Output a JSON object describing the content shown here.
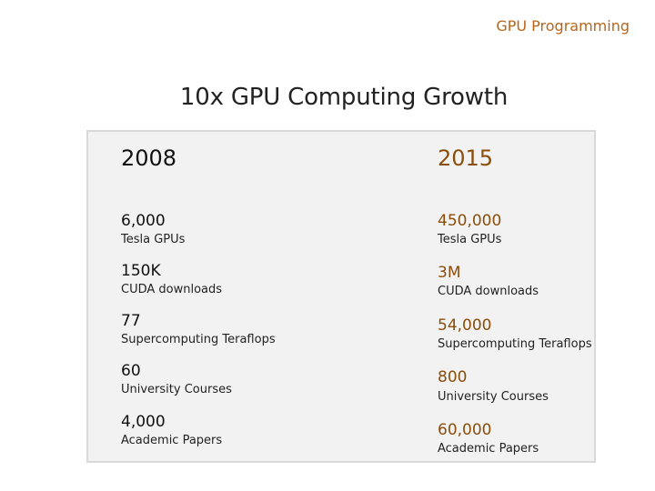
{
  "header": {
    "section": "GPU Programming"
  },
  "slide": {
    "title": "10x GPU Computing Growth"
  },
  "comparison": {
    "left": {
      "year": "2008",
      "stats": [
        {
          "value": "6,000",
          "label": "Tesla GPUs"
        },
        {
          "value": "150K",
          "label": "CUDA downloads"
        },
        {
          "value": "77",
          "label": "Supercomputing Teraflops"
        },
        {
          "value": "60",
          "label": "University Courses"
        },
        {
          "value": "4,000",
          "label": "Academic Papers"
        }
      ]
    },
    "right": {
      "year": "2015",
      "stats": [
        {
          "value": "450,000",
          "label": "Tesla GPUs"
        },
        {
          "value": "3M",
          "label": "CUDA downloads"
        },
        {
          "value": "54,000",
          "label": "Supercomputing Teraflops"
        },
        {
          "value": "800",
          "label": "University Courses"
        },
        {
          "value": "60,000",
          "label": "Academic Papers"
        }
      ]
    }
  },
  "colors": {
    "accent": "#b8651a",
    "highlight_value": "#8a4e0c",
    "panel_background": "#f2f2f2",
    "panel_border": "#d9d9d9"
  }
}
